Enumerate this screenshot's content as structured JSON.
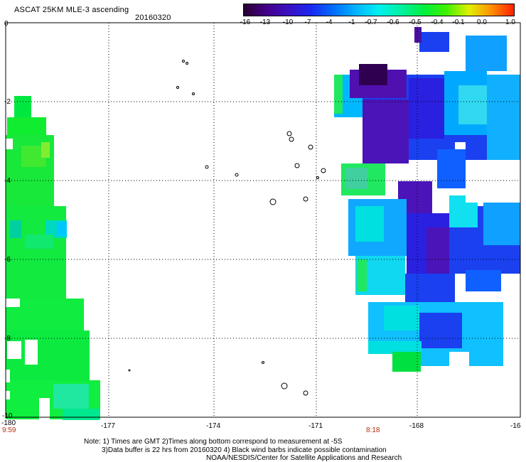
{
  "header": {
    "product": "ASCAT 25KM MLE-3 ascending",
    "date": "20160320"
  },
  "colorbar": {
    "labels": [
      "-16",
      "-13",
      "-10",
      "-7",
      "-4",
      "-1",
      "-0.7",
      "-0.6",
      "-0.5",
      "-0.4",
      "-0.1",
      "0.0",
      "1.0"
    ],
    "colors": [
      "#2a0030",
      "#45008a",
      "#3a10c0",
      "#1a28f0",
      "#0070ff",
      "#00b4ff",
      "#00f0f0",
      "#00f0a0",
      "#00f040",
      "#40f000",
      "#e0f000",
      "#ff9000",
      "#ff2000"
    ]
  },
  "map": {
    "y_ticks": [
      "0",
      "-2",
      "-4",
      "-6",
      "-8",
      "-10"
    ],
    "x_ticks": [
      "-180",
      "-177",
      "-174",
      "-171",
      "-168",
      "-16"
    ],
    "time_labels": [
      "9:59",
      "8:18"
    ]
  },
  "footer": {
    "line1": "Note: 1) Times are GMT 2)Times along bottom correspond to measurement at -5S",
    "line2": "3)Data buffer is 22 hrs from 20160320 4) Black wind barbs indicate possible contamination",
    "line3": "NOAA/NESDIS/Center for Satellite Applications and Research"
  }
}
